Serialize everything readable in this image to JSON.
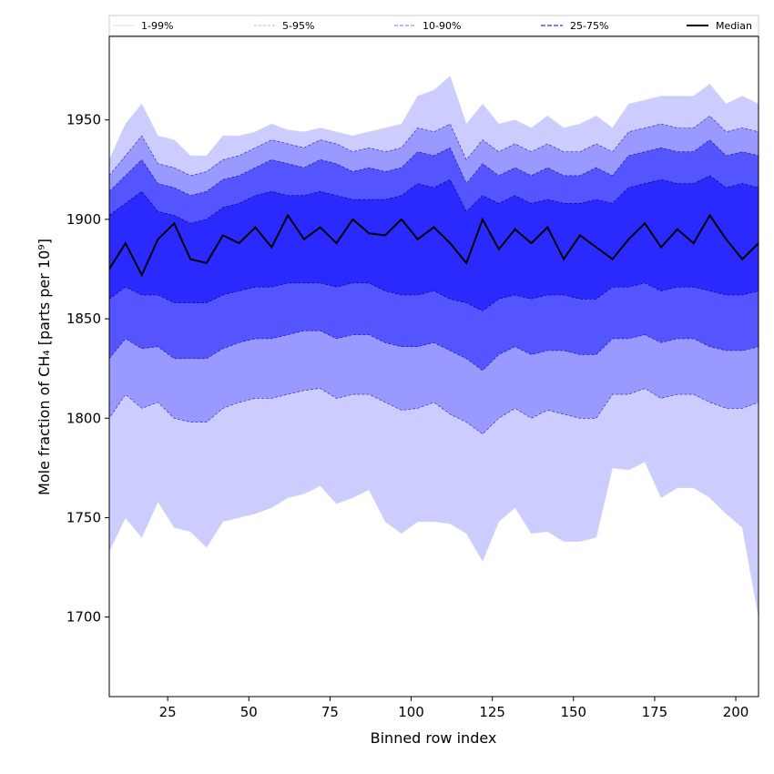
{
  "chart_data": {
    "type": "area",
    "xlabel": "Binned row index",
    "ylabel": "Mole fraction of CH₄ [parts per 10⁹]",
    "xlim": [
      7,
      207
    ],
    "ylim": [
      1660,
      1992
    ],
    "x_ticks": [
      25,
      50,
      75,
      100,
      125,
      150,
      175,
      200
    ],
    "y_ticks": [
      1700,
      1750,
      1800,
      1850,
      1900,
      1950
    ],
    "grid": false,
    "legend_position": "top",
    "x": [
      7,
      12,
      17,
      22,
      27,
      32,
      37,
      42,
      47,
      52,
      57,
      62,
      67,
      72,
      77,
      82,
      87,
      92,
      97,
      102,
      107,
      112,
      117,
      122,
      127,
      132,
      137,
      142,
      147,
      152,
      157,
      162,
      167,
      172,
      177,
      182,
      187,
      192,
      197,
      202,
      207
    ],
    "series": [
      {
        "name": "1-99%",
        "color": "#ccccff",
        "edge_color": "#d9d9f5",
        "lower": [
          1733,
          1750,
          1740,
          1758,
          1745,
          1743,
          1735,
          1748,
          1750,
          1752,
          1755,
          1760,
          1762,
          1766,
          1757,
          1760,
          1764,
          1748,
          1742,
          1748,
          1748,
          1747,
          1742,
          1728,
          1748,
          1755,
          1742,
          1743,
          1738,
          1738,
          1740,
          1775,
          1774,
          1778,
          1760,
          1765,
          1765,
          1760,
          1752,
          1745,
          1700
        ],
        "upper": [
          1930,
          1948,
          1958,
          1942,
          1940,
          1932,
          1932,
          1942,
          1942,
          1944,
          1948,
          1945,
          1944,
          1946,
          1944,
          1942,
          1944,
          1946,
          1948,
          1962,
          1965,
          1972,
          1948,
          1958,
          1948,
          1950,
          1946,
          1952,
          1946,
          1948,
          1952,
          1946,
          1958,
          1960,
          1962,
          1962,
          1962,
          1968,
          1958,
          1962,
          1958
        ]
      },
      {
        "name": "5-95%",
        "color": "#9999ff",
        "edge_color": "#2222aa",
        "lower": [
          1800,
          1812,
          1805,
          1808,
          1800,
          1798,
          1798,
          1805,
          1808,
          1810,
          1810,
          1812,
          1814,
          1815,
          1810,
          1812,
          1812,
          1808,
          1804,
          1805,
          1808,
          1802,
          1798,
          1792,
          1800,
          1805,
          1800,
          1804,
          1802,
          1800,
          1800,
          1812,
          1812,
          1815,
          1810,
          1812,
          1812,
          1808,
          1805,
          1805,
          1808
        ],
        "upper": [
          1922,
          1932,
          1942,
          1928,
          1926,
          1922,
          1924,
          1930,
          1932,
          1936,
          1940,
          1938,
          1936,
          1940,
          1938,
          1934,
          1936,
          1934,
          1936,
          1946,
          1944,
          1948,
          1930,
          1940,
          1934,
          1938,
          1934,
          1938,
          1934,
          1934,
          1938,
          1934,
          1944,
          1946,
          1948,
          1946,
          1946,
          1952,
          1944,
          1946,
          1944
        ]
      },
      {
        "name": "10-90%",
        "color": "#5555ff",
        "edge_color": "#111188",
        "lower": [
          1830,
          1840,
          1835,
          1836,
          1830,
          1830,
          1830,
          1835,
          1838,
          1840,
          1840,
          1842,
          1844,
          1844,
          1840,
          1842,
          1842,
          1838,
          1836,
          1836,
          1838,
          1834,
          1830,
          1824,
          1832,
          1836,
          1832,
          1834,
          1834,
          1832,
          1832,
          1840,
          1840,
          1842,
          1838,
          1840,
          1840,
          1836,
          1834,
          1834,
          1836
        ],
        "upper": [
          1914,
          1922,
          1930,
          1918,
          1916,
          1912,
          1914,
          1920,
          1922,
          1926,
          1930,
          1928,
          1926,
          1930,
          1928,
          1924,
          1926,
          1924,
          1926,
          1934,
          1932,
          1936,
          1918,
          1928,
          1922,
          1926,
          1922,
          1926,
          1922,
          1922,
          1926,
          1922,
          1932,
          1934,
          1936,
          1934,
          1934,
          1940,
          1932,
          1934,
          1932
        ]
      },
      {
        "name": "25-75%",
        "color": "#2a2aff",
        "edge_color": "#000066",
        "lower": [
          1860,
          1866,
          1862,
          1862,
          1858,
          1858,
          1858,
          1862,
          1864,
          1866,
          1866,
          1868,
          1868,
          1868,
          1866,
          1868,
          1868,
          1864,
          1862,
          1862,
          1864,
          1860,
          1858,
          1854,
          1860,
          1862,
          1860,
          1862,
          1862,
          1860,
          1860,
          1866,
          1866,
          1868,
          1864,
          1866,
          1866,
          1864,
          1862,
          1862,
          1864
        ],
        "upper": [
          1902,
          1908,
          1914,
          1904,
          1902,
          1898,
          1900,
          1906,
          1908,
          1912,
          1914,
          1912,
          1912,
          1914,
          1912,
          1910,
          1910,
          1910,
          1912,
          1918,
          1916,
          1920,
          1904,
          1912,
          1908,
          1912,
          1908,
          1910,
          1908,
          1908,
          1910,
          1908,
          1916,
          1918,
          1920,
          1918,
          1918,
          1922,
          1916,
          1918,
          1916
        ]
      },
      {
        "name": "Median",
        "color": "#000000",
        "values": [
          1875,
          1888,
          1872,
          1890,
          1898,
          1880,
          1878,
          1892,
          1888,
          1896,
          1886,
          1902,
          1890,
          1896,
          1888,
          1900,
          1893,
          1892,
          1900,
          1890,
          1896,
          1888,
          1878,
          1900,
          1885,
          1895,
          1888,
          1896,
          1880,
          1892,
          1886,
          1880,
          1890,
          1898,
          1886,
          1895,
          1888,
          1902,
          1890,
          1880,
          1888
        ]
      }
    ]
  }
}
